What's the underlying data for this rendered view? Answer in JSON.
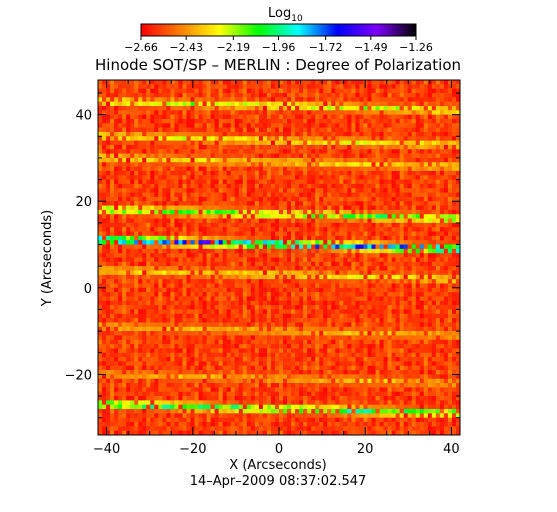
{
  "chart_data": {
    "type": "heatmap",
    "title": "Hinode SOT/SP – MERLIN : Degree of Polarization",
    "xlabel": "X (Arcseconds)",
    "ylabel": "Y (Arcseconds)",
    "timestamp": "14–Apr–2009 08:37:02.547",
    "xlim": [
      -42,
      42
    ],
    "ylim": [
      -34,
      48
    ],
    "x_ticks": [
      -40,
      -20,
      0,
      20,
      40
    ],
    "y_ticks": [
      -20,
      0,
      20,
      40
    ],
    "x_tick_labels": [
      "−40",
      "−20",
      "0",
      "20",
      "40"
    ],
    "y_tick_labels": [
      "−20",
      "0",
      "20",
      "40"
    ],
    "colorbar": {
      "title_base": "Log",
      "title_sub": "10",
      "scale": "log10",
      "range": [
        -2.66,
        -1.26
      ],
      "tick_values": [
        -2.66,
        -2.43,
        -2.19,
        -1.96,
        -1.72,
        -1.49,
        -1.26
      ],
      "tick_labels": [
        "−2.66",
        "−2.43",
        "−2.19",
        "−1.96",
        "−1.72",
        "−1.49",
        "−1.26"
      ],
      "colors": [
        "#ff0000",
        "#ff7f00",
        "#ffff00",
        "#00ff00",
        "#00ffff",
        "#0000ff",
        "#7f00ff",
        "#000000"
      ]
    },
    "field_background_value": -2.58,
    "bright_bands": [
      {
        "y": 43,
        "value": -2.15
      },
      {
        "y": 35,
        "value": -2.22
      },
      {
        "y": 30,
        "value": -2.27
      },
      {
        "y": 18,
        "value": -2.0
      },
      {
        "y": 11,
        "value": -1.62
      },
      {
        "y": 4,
        "value": -2.25
      },
      {
        "y": -9,
        "value": -2.33
      },
      {
        "y": -20,
        "value": -2.33
      },
      {
        "y": -27,
        "value": -1.92
      }
    ]
  }
}
